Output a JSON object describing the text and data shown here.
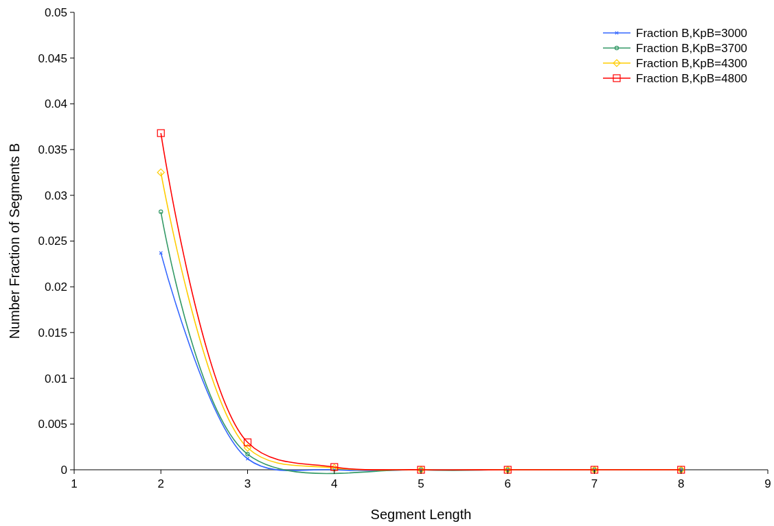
{
  "chart_data": {
    "type": "line",
    "xlabel": "Segment Length",
    "ylabel": "Number Fraction of Segments B",
    "x": [
      2,
      3,
      4,
      5,
      6,
      7,
      8
    ],
    "series": [
      {
        "name": "Fraction B,KpB=3000",
        "color": "#3366ff",
        "marker": "cross",
        "values": [
          0.0237,
          0.0012,
          0,
          0,
          0,
          0,
          0
        ]
      },
      {
        "name": "Fraction B,KpB=3700",
        "color": "#339966",
        "marker": "circle",
        "values": [
          0.0282,
          0.0017,
          null,
          0,
          0,
          0,
          0
        ]
      },
      {
        "name": "Fraction B,KpB=4300",
        "color": "#ffcc00",
        "marker": "diamond",
        "values": [
          0.0325,
          0.0024,
          0.0002,
          0,
          0,
          0,
          0
        ]
      },
      {
        "name": "Fraction B,KpB=4800",
        "color": "#ff0000",
        "marker": "square",
        "values": [
          0.0368,
          0.003,
          0.0003,
          0,
          0,
          0,
          0
        ]
      }
    ],
    "xlim": [
      1,
      9
    ],
    "xticks": [
      1,
      2,
      3,
      4,
      5,
      6,
      7,
      8,
      9
    ],
    "ylim": [
      0,
      0.05
    ],
    "yticks": [
      0,
      0.005,
      0.01,
      0.015,
      0.02,
      0.025,
      0.03,
      0.035,
      0.04,
      0.045,
      0.05
    ],
    "legend": "top right",
    "grid": false
  }
}
